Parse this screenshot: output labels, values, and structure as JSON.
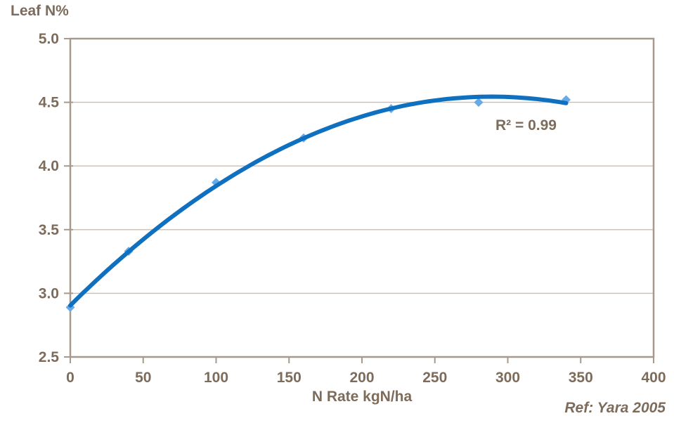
{
  "colors": {
    "text": "#7D6C5B",
    "axis": "#A79A8C",
    "gridline": "#C9BEB1",
    "trendline": "#1070C0",
    "marker": "#66ABE8",
    "background": "#FFFFFF"
  },
  "chart_data": {
    "type": "scatter",
    "title": "Leaf N%",
    "xlabel": "N Rate kgN/ha",
    "ylabel": "Leaf N%",
    "x": [
      0,
      40,
      100,
      160,
      220,
      280,
      340
    ],
    "y": [
      2.89,
      3.33,
      3.87,
      4.22,
      4.45,
      4.5,
      4.52
    ],
    "trendline": "quadratic",
    "r_squared_label": "R² = 0.99",
    "reference": "Ref: Yara 2005",
    "xlim": [
      0,
      400
    ],
    "ylim": [
      2.5,
      5.0
    ],
    "xticks": [
      0,
      50,
      100,
      150,
      200,
      250,
      300,
      350,
      400
    ],
    "yticks": [
      2.5,
      3.0,
      3.5,
      4.0,
      4.5,
      5.0
    ],
    "grid": "horizontal-only",
    "legend": "none"
  }
}
